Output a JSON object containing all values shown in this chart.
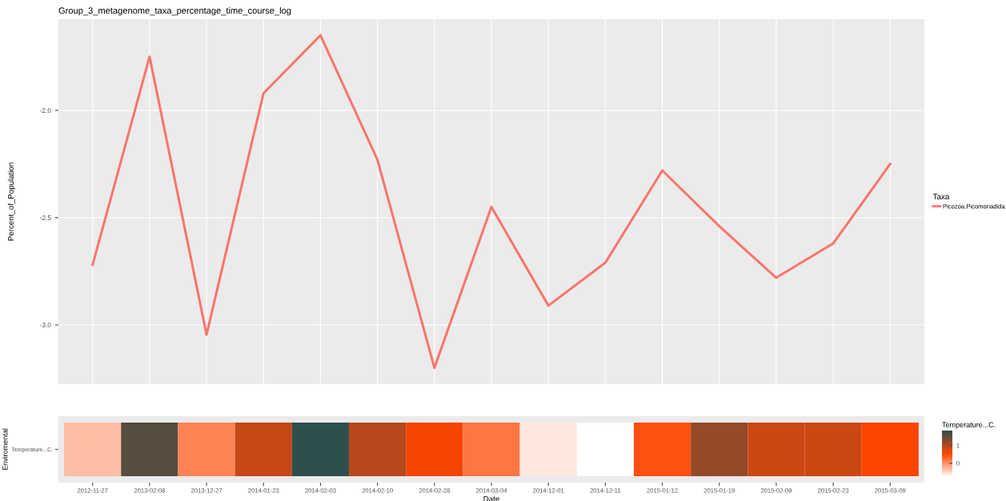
{
  "chart_data": [
    {
      "type": "line",
      "title": "Group_3_metagenome_taxa_percentage_time_course_log",
      "ylabel": "Percent_of_Population",
      "legend_title": "Taxa",
      "categories": [
        "2012-11-27",
        "2013-02-08",
        "2013-12-27",
        "2014-01-23",
        "2014-02-03",
        "2014-02-10",
        "2014-02-28",
        "2014-03-04",
        "2014-12-01",
        "2014-12-11",
        "2015-01-12",
        "2015-01-19",
        "2015-02-09",
        "2015-02-23",
        "2015-03-09"
      ],
      "series": [
        {
          "name": "Picozoa.Picomonadida",
          "color": "#f8766d",
          "values": [
            -2.72,
            -1.75,
            -3.045,
            -1.92,
            -1.65,
            -2.23,
            -3.2,
            -2.45,
            -2.91,
            -2.71,
            -2.28,
            -2.54,
            -2.78,
            -2.62,
            -2.25
          ]
        }
      ],
      "ylim": [
        -3.276,
        -1.575
      ],
      "yticks": [
        {
          "value": -2.0,
          "label": "-2.0"
        },
        {
          "value": -2.5,
          "label": "-2.5"
        },
        {
          "value": -3.0,
          "label": "-3.0"
        }
      ],
      "grid": true,
      "legend": "right",
      "tick_labels": "y",
      "line_style": "solid",
      "marker": "none"
    },
    {
      "type": "heatmap",
      "xlabel": "Date",
      "ylabel": "Enviromental",
      "clabel": "Temperature...C.",
      "categories": [
        "2012-11-27",
        "2013-02-08",
        "2013-12-27",
        "2014-01-23",
        "2014-02-03",
        "2014-02-10",
        "2014-02-28",
        "2014-03-04",
        "2014-12-01",
        "2014-12-11",
        "2015-01-12",
        "2015-01-19",
        "2015-02-09",
        "2015-02-23",
        "2015-03-09"
      ],
      "y_categories": [
        "Temperature...C."
      ],
      "cells": [
        [
          -0.3,
          1.6,
          0.1,
          0.9,
          1.85,
          1.0,
          0.6,
          0.2,
          -0.6,
          -0.77,
          0.45,
          1.2,
          0.85,
          0.85,
          0.55
        ]
      ],
      "colors": [
        "#ffffff",
        "#ff4500",
        "#2f4f4f"
      ],
      "clim": [
        -0.77,
        1.85
      ],
      "cticks": [
        0,
        1
      ]
    }
  ]
}
